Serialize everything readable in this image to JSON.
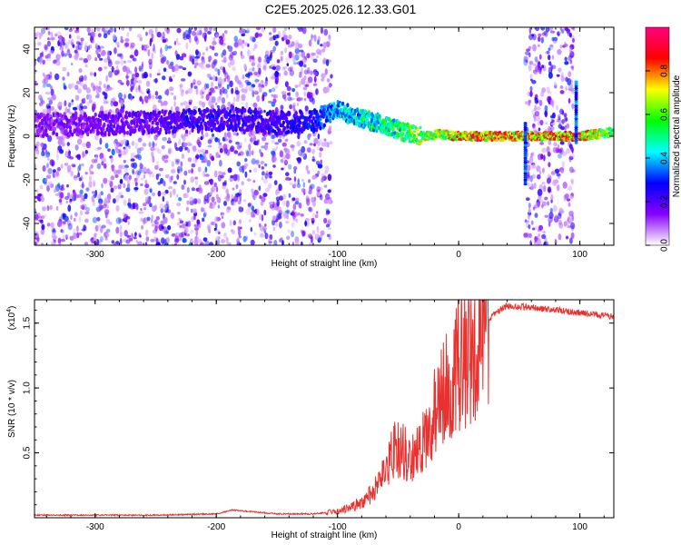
{
  "title": "C2E5.2025.026.12.33.G01",
  "chart_data": [
    {
      "type": "heatmap",
      "xlabel": "Height of straight line (km)",
      "ylabel": "Frequency (Hz)",
      "xlim": [
        -350,
        128
      ],
      "ylim": [
        -50,
        50
      ],
      "xticks": [
        -300,
        -200,
        -100,
        0,
        100
      ],
      "yticks": [
        -40,
        -20,
        0,
        20,
        40
      ],
      "colorbar": {
        "label": "Normalized spectral amplitude",
        "range": [
          0,
          1
        ],
        "ticks": [
          "0.0",
          "0.2",
          "0.4",
          "0.6",
          "0.8"
        ],
        "colors": [
          "#ffffff",
          "#8800ff",
          "#0000ff",
          "#00ffff",
          "#00ff00",
          "#ffff00",
          "#ff0000",
          "#ff0080"
        ]
      },
      "scatter_regions": [
        {
          "x0": -350,
          "x1": -105,
          "y0": -50,
          "y1": 50
        },
        {
          "x0": 55,
          "x1": 95,
          "y0": -50,
          "y1": 50
        }
      ],
      "ridge": [
        {
          "x": -350,
          "y": 5,
          "amp": 0.15
        },
        {
          "x": -270,
          "y": 6,
          "amp": 0.2
        },
        {
          "x": -220,
          "y": 7,
          "amp": 0.25
        },
        {
          "x": -180,
          "y": 8,
          "amp": 0.28
        },
        {
          "x": -150,
          "y": 6,
          "amp": 0.25
        },
        {
          "x": -120,
          "y": 7,
          "amp": 0.3
        },
        {
          "x": -100,
          "y": 12,
          "amp": 0.45
        },
        {
          "x": -80,
          "y": 8,
          "amp": 0.5
        },
        {
          "x": -60,
          "y": 5,
          "amp": 0.55
        },
        {
          "x": -45,
          "y": 2,
          "amp": 0.6
        },
        {
          "x": -30,
          "y": 0,
          "amp": 0.7
        },
        {
          "x": -15,
          "y": 1,
          "amp": 0.75
        },
        {
          "x": 0,
          "y": 0,
          "amp": 0.85
        },
        {
          "x": 20,
          "y": 0,
          "amp": 0.9
        },
        {
          "x": 45,
          "y": 0,
          "amp": 0.85
        },
        {
          "x": 100,
          "y": 0,
          "amp": 0.9
        },
        {
          "x": 128,
          "y": 2,
          "amp": 0.6
        }
      ]
    },
    {
      "type": "line",
      "xlabel": "Height of straight line (km)",
      "ylabel": "SNR (10 * v/v)",
      "yscale_label": "(x10",
      "yscale_exp": "4",
      "yscale_close": ")",
      "xlim": [
        -350,
        128
      ],
      "ylim": [
        0,
        1.68
      ],
      "xticks": [
        -300,
        -200,
        -100,
        0,
        100
      ],
      "yticks": [
        "0.5",
        "1.0",
        "1.5"
      ],
      "color": "#e8322f",
      "series": [
        {
          "x": [
            -350,
            -300,
            -250,
            -200,
            -187,
            -150,
            -120,
            -100,
            -90,
            -80,
            -70,
            -60,
            -55,
            -50,
            -45,
            -40,
            -30,
            -25,
            -20,
            -10,
            -5,
            0,
            10,
            15,
            20,
            30,
            40,
            60,
            80,
            100,
            128
          ],
          "y": [
            0.02,
            0.02,
            0.02,
            0.03,
            0.06,
            0.03,
            0.03,
            0.05,
            0.08,
            0.12,
            0.2,
            0.35,
            0.5,
            0.55,
            0.5,
            0.45,
            0.55,
            0.7,
            0.8,
            1.0,
            1.1,
            1.2,
            1.25,
            1.3,
            1.45,
            1.58,
            1.63,
            1.62,
            1.6,
            1.58,
            1.55
          ]
        }
      ]
    }
  ]
}
